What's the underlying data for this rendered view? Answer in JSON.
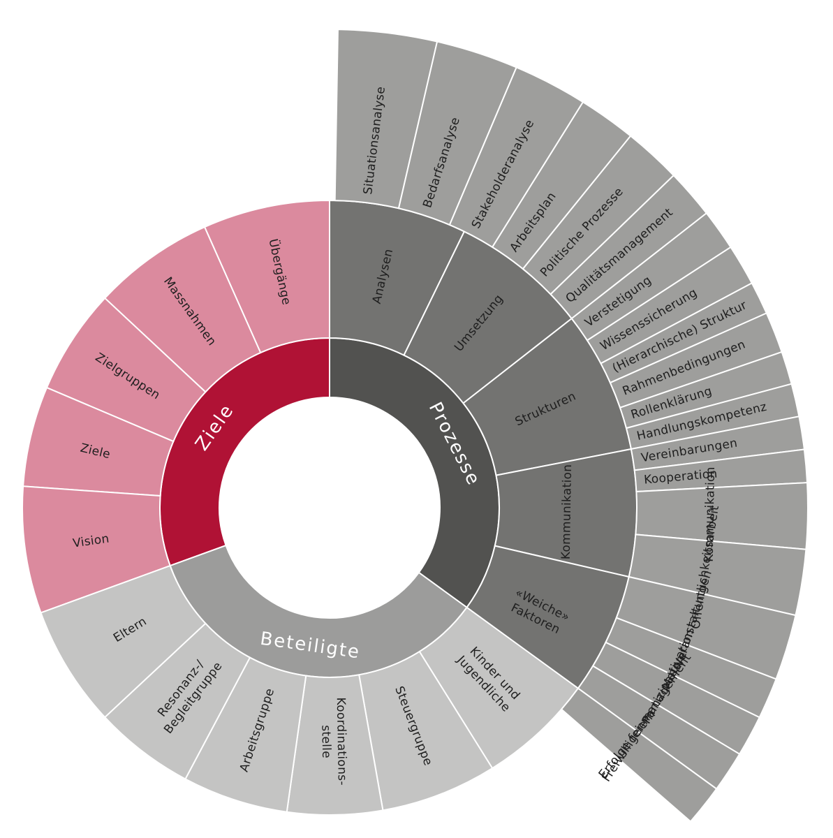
{
  "colors": {
    "ziele_inner": "#B01235",
    "ziele_middle": "#DB8A9E",
    "prozesse_inner": "#525250",
    "prozesse_middle": "#737371",
    "prozesse_outer": "#9E9E9C",
    "beteiligte_inner": "#9C9C9B",
    "beteiligte_middle": "#C4C4C3",
    "label_dark": "#1E1E1E",
    "label_light": "#FFFFFF"
  },
  "sunburst": {
    "groups": [
      {
        "name": "Ziele",
        "color_key": "ziele",
        "children": [
          {
            "name": "Übergänge"
          },
          {
            "name": "Massnahmen"
          },
          {
            "name": "Zielgruppen"
          },
          {
            "name": "Ziele"
          },
          {
            "name": "Vision"
          }
        ]
      },
      {
        "name": "Prozesse",
        "color_key": "prozesse",
        "children": [
          {
            "name": "Analysen",
            "children": [
              "Situationsanalyse",
              "Bedarfsanalyse",
              "Stakeholderanalyse"
            ]
          },
          {
            "name": "Umsetzung",
            "children": [
              "Arbeitsplan",
              "Politische Prozesse",
              "Qualitätsmanagement",
              "Verstetigung",
              "Wissenssicherung"
            ]
          },
          {
            "name": "Strukturen",
            "children": [
              "(Hierarchische) Struktur",
              "Rahmenbedingungen",
              "Rollenklärung",
              "Handlungskompetenz",
              "Vereinbarungen",
              "Kooperation"
            ]
          },
          {
            "name": "Kommunikation",
            "children": [
              "Kommunikation",
              "Öffentlichkeitsarbeit",
              "Veranstaltungen"
            ]
          },
          {
            "name": "«Weiche» Faktoren",
            "children": [
              "Motivation",
              "Partizipation",
              "Freiwilligenmanagement",
              "Erfolge feiern"
            ]
          }
        ]
      },
      {
        "name": "Beteiligte",
        "color_key": "beteiligte",
        "children": [
          {
            "name": "Kinder und Jugendliche"
          },
          {
            "name": "Steuergruppe"
          },
          {
            "name": "Koordinations-stelle"
          },
          {
            "name": "Arbeitsgruppe"
          },
          {
            "name": "Resonanz-/ Begleitgruppe"
          },
          {
            "name": "Eltern"
          }
        ]
      }
    ]
  }
}
